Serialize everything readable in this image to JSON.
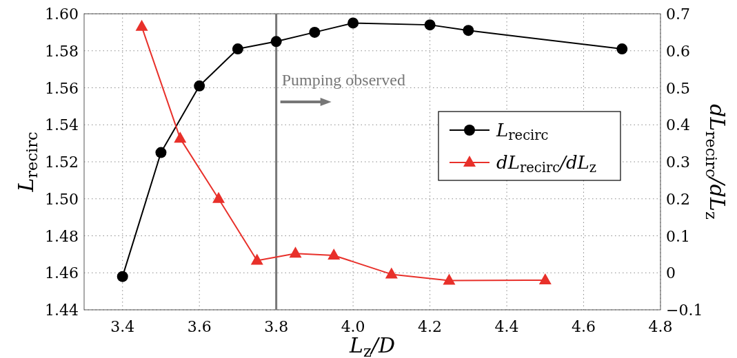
{
  "chart_data": {
    "type": "line",
    "xlabel": "L$_{z}$/D",
    "ylabel": "L$_{recirc}$",
    "y2label": "dL$_{recirc}$/dL$_{z}$",
    "xlim": [
      3.3,
      4.8
    ],
    "xticks": [
      3.4,
      3.6,
      3.8,
      {
        "value": 4,
        "label": "4.0"
      },
      4.2,
      4.4,
      4.6,
      4.8
    ],
    "ylim": [
      1.44,
      1.6
    ],
    "yticks": [
      1.44,
      1.46,
      1.48,
      {
        "value": 1.5,
        "label": "1.50"
      },
      1.52,
      1.54,
      1.56,
      1.58,
      {
        "value": 1.6,
        "label": "1.60"
      }
    ],
    "y2lim": [
      -0.1,
      0.7
    ],
    "y2ticks": [
      {
        "value": -0.1,
        "label": "−0.1"
      },
      0,
      0.1,
      0.2,
      0.3,
      0.4,
      0.5,
      0.6,
      0.7
    ],
    "grid": true,
    "legend": "right",
    "line_style": "solid",
    "series": [
      {
        "name": "L$_{recirc}$",
        "color": "#000000",
        "marker": "circle",
        "x": [
          3.4,
          3.5,
          3.6,
          3.7,
          3.8,
          3.9,
          4.0,
          4.2,
          4.3,
          4.7
        ],
        "values": [
          1.458,
          1.525,
          1.561,
          1.581,
          1.585,
          1.59,
          1.595,
          1.594,
          1.591,
          1.581
        ]
      },
      {
        "name": "dL$_{recirc}$/dL$_{z}$",
        "color": "#e8302a",
        "marker": "triangle",
        "axis": "y2",
        "x": [
          3.45,
          3.55,
          3.65,
          3.75,
          3.85,
          3.95,
          4.1,
          4.25,
          4.5
        ],
        "values": [
          0.665,
          0.363,
          0.2,
          0.033,
          0.052,
          0.047,
          -0.004,
          -0.021,
          -0.02
        ]
      }
    ],
    "ref_lines": [
      {
        "axis": "x",
        "value": 3.8,
        "label": "Pumping observed",
        "color": "#777777"
      }
    ]
  }
}
